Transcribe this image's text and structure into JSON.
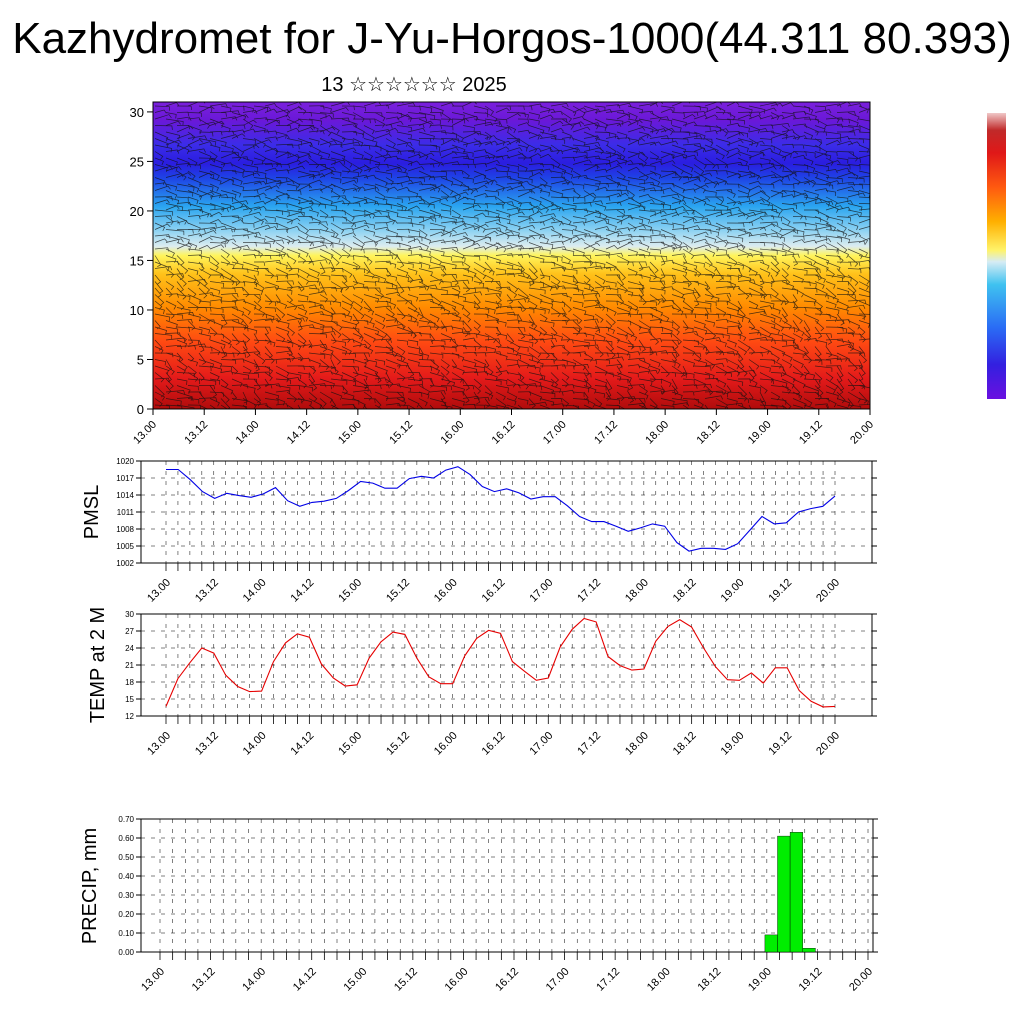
{
  "header": {
    "title": "Kazhydromet for J-Yu-Horgos-1000(44.311 80.393)",
    "subtitle": "13 ☆☆☆☆☆☆ 2025"
  },
  "colors": {
    "temp_line": "#e60000",
    "pmsl_line": "#0000e6",
    "precip_bar": "#00ee00",
    "background": "#ffffff"
  },
  "chart_data": [
    {
      "type": "heatmap",
      "title": "",
      "xlabel": "",
      "ylabel": "",
      "x_ticks": [
        "13.00",
        "13.12",
        "14.00",
        "14.12",
        "15.00",
        "15.12",
        "16.00",
        "16.12",
        "17.00",
        "17.12",
        "18.00",
        "18.12",
        "19.00",
        "19.12",
        "20.00"
      ],
      "y_ticks": [
        0,
        5,
        10,
        15,
        20,
        25,
        30
      ],
      "ylim": [
        0,
        31
      ],
      "description_colorscale": [
        "#6a0dad",
        "#3a1fd9",
        "#2f6bff",
        "#4cc6f5",
        "#d8ecf5",
        "#fff24a",
        "#ffb000",
        "#ff6a00",
        "#e81b1b",
        "#b50e0e"
      ],
      "overlay": "wind barbs",
      "legend": "right colorbar"
    },
    {
      "type": "line",
      "ylabel": "PMSL",
      "x_ticks": [
        "13.00",
        "13.12",
        "14.00",
        "14.12",
        "15.00",
        "15.12",
        "16.00",
        "16.12",
        "17.00",
        "17.12",
        "18.00",
        "18.12",
        "19.00",
        "19.12",
        "20.00"
      ],
      "y_ticks": [
        1002,
        1005,
        1008,
        1011,
        1014,
        1017,
        1020
      ],
      "ylim": [
        1002,
        1020
      ],
      "grid": true,
      "series": [
        {
          "values": [
            1018.5,
            1018.5,
            1016.7,
            1014.6,
            1013.4,
            1014.3,
            1013.9,
            1013.6,
            1014.2,
            1015.3,
            1013.0,
            1012.0,
            1012.7,
            1012.9,
            1013.4,
            1014.8,
            1016.4,
            1016.1,
            1015.2,
            1015.2,
            1016.9,
            1017.3,
            1017.0,
            1018.4,
            1019.0,
            1017.6,
            1015.5,
            1014.6,
            1015.1,
            1014.4,
            1013.3,
            1013.7,
            1013.7,
            1012.1,
            1010.2,
            1009.3,
            1009.3,
            1008.5,
            1007.6,
            1008.2,
            1008.9,
            1008.5,
            1005.6,
            1004.1,
            1004.6,
            1004.6,
            1004.4,
            1005.4,
            1007.8,
            1010.2,
            1008.9,
            1009.1,
            1011.0,
            1011.6,
            1012.0,
            1013.8
          ]
        }
      ]
    },
    {
      "type": "line",
      "ylabel": "TEMP at 2 M",
      "x_ticks": [
        "13.00",
        "13.12",
        "14.00",
        "14.12",
        "15.00",
        "15.12",
        "16.00",
        "16.12",
        "17.00",
        "17.12",
        "18.00",
        "18.12",
        "19.00",
        "19.12",
        "20.00"
      ],
      "y_ticks": [
        12,
        15,
        18,
        21,
        24,
        27,
        30
      ],
      "ylim": [
        12,
        30
      ],
      "grid": true,
      "series": [
        {
          "values": [
            13.7,
            18.6,
            21.4,
            24.0,
            23.1,
            19.2,
            17.2,
            16.3,
            16.4,
            21.6,
            24.9,
            26.5,
            25.9,
            21.2,
            18.7,
            17.3,
            17.5,
            22.2,
            25.1,
            26.8,
            26.4,
            22.2,
            18.9,
            17.7,
            17.7,
            22.6,
            25.7,
            27.1,
            26.6,
            21.6,
            19.9,
            18.3,
            18.7,
            24.2,
            27.3,
            29.2,
            28.6,
            22.5,
            20.9,
            20.1,
            20.3,
            25.2,
            27.8,
            29.0,
            27.7,
            24.0,
            20.7,
            18.4,
            18.3,
            19.6,
            17.8,
            20.5,
            20.5,
            16.5,
            14.6,
            13.6,
            13.7
          ]
        }
      ]
    },
    {
      "type": "bar",
      "ylabel": "PRECIP, mm",
      "x_ticks": [
        "13.00",
        "13.12",
        "14.00",
        "14.12",
        "15.00",
        "15.12",
        "16.00",
        "16.12",
        "17.00",
        "17.12",
        "18.00",
        "18.12",
        "19.00",
        "19.12",
        "20.00"
      ],
      "y_ticks": [
        "0.00",
        "0.10",
        "0.20",
        "0.30",
        "0.40",
        "0.50",
        "0.60",
        "0.70"
      ],
      "ylim": [
        0,
        0.7
      ],
      "grid": true,
      "bars": [
        {
          "x_hours": 144,
          "value": 0.09
        },
        {
          "x_hours": 147,
          "value": 0.61
        },
        {
          "x_hours": 150,
          "value": 0.63
        },
        {
          "x_hours": 153,
          "value": 0.02
        }
      ]
    }
  ]
}
